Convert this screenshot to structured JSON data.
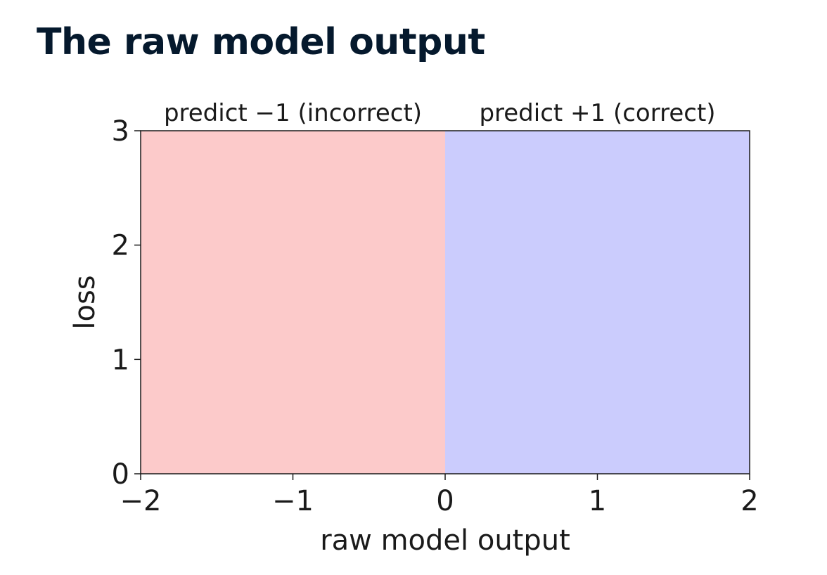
{
  "slide": {
    "title": "The raw model output"
  },
  "chart_data": {
    "type": "area",
    "title": "",
    "xlabel": "raw model output",
    "ylabel": "loss",
    "xlim": [
      -2,
      2
    ],
    "ylim": [
      0,
      3
    ],
    "x_ticks": [
      -2,
      -1,
      0,
      1,
      2
    ],
    "x_tick_labels": [
      "−2",
      "−1",
      "0",
      "1",
      "2"
    ],
    "y_ticks": [
      0,
      1,
      2,
      3
    ],
    "y_tick_labels": [
      "0",
      "1",
      "2",
      "3"
    ],
    "grid": false,
    "regions": [
      {
        "label": "predict −1 (incorrect)",
        "x_start": -2,
        "x_end": 0,
        "color": "#fccaca"
      },
      {
        "label": "predict +1 (correct)",
        "x_start": 0,
        "x_end": 2,
        "color": "#cbccfd"
      }
    ]
  }
}
